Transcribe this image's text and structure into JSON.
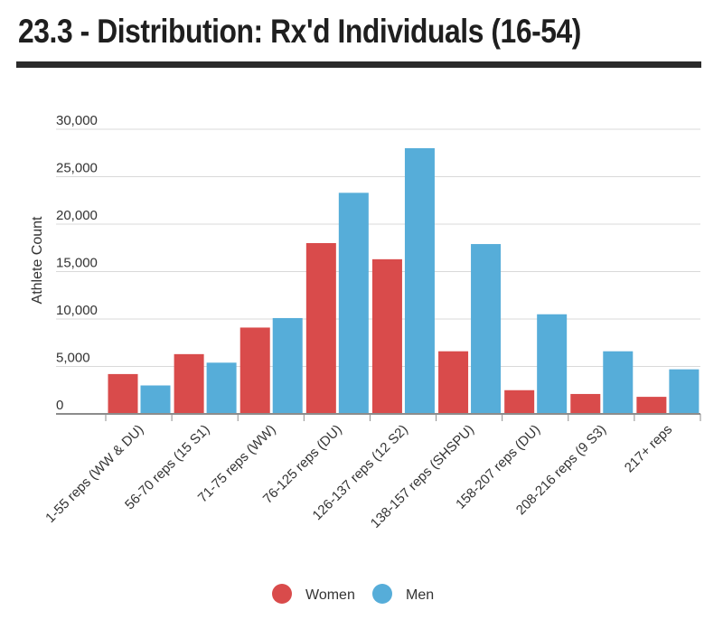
{
  "title": "23.3 - Distribution: Rx'd Individuals (16-54)",
  "chart_data": {
    "type": "bar",
    "title": "23.3 - Distribution: Rx'd Individuals (16-54)",
    "xlabel": "",
    "ylabel": "Athlete Count",
    "ylim": [
      0,
      30000
    ],
    "yticks": [
      0,
      5000,
      10000,
      15000,
      20000,
      25000,
      30000
    ],
    "ytick_labels": [
      "0",
      "5,000",
      "10,000",
      "15,000",
      "20,000",
      "25,000",
      "30,000"
    ],
    "grid": true,
    "legend_position": "bottom",
    "categories": [
      "1-55 reps (WW & DU)",
      "56-70 reps (15 S1)",
      "71-75 reps (WW)",
      "76-125 reps (DU)",
      "126-137 reps (12 S2)",
      "138-157 reps (SHSPU)",
      "158-207 reps (DU)",
      "208-216 reps (9 S3)",
      "217+ reps"
    ],
    "series": [
      {
        "name": "Women",
        "color": "#d94b4b",
        "values": [
          4200,
          6300,
          9100,
          18000,
          16300,
          6600,
          2500,
          2100,
          1800
        ]
      },
      {
        "name": "Men",
        "color": "#56add9",
        "values": [
          3000,
          5400,
          10100,
          23300,
          28000,
          17900,
          10500,
          6600,
          4700
        ]
      }
    ]
  }
}
